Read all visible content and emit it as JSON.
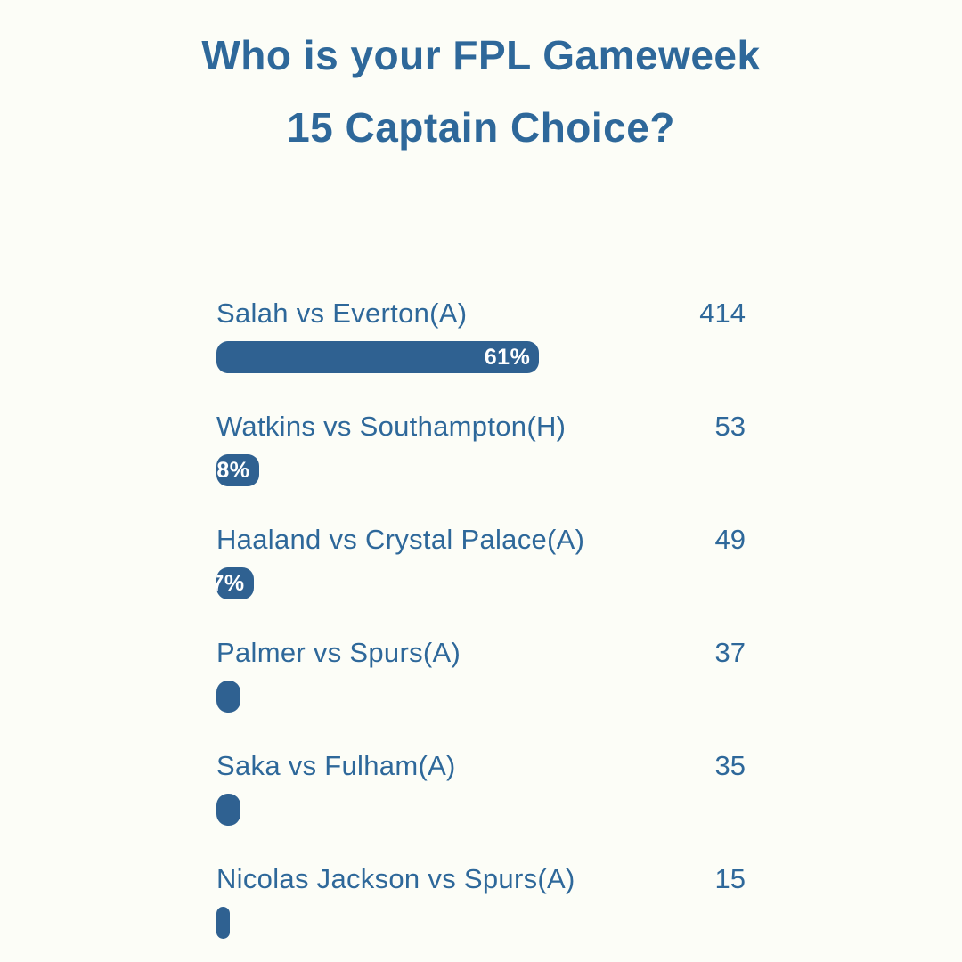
{
  "title": {
    "line1": "Who is your FPL Gameweek",
    "line2": "15 Captain Choice?"
  },
  "chart_data": {
    "type": "bar",
    "title": "Who is your FPL Gameweek 15 Captain Choice?",
    "orientation": "horizontal",
    "value_label": "votes",
    "options": [
      {
        "label": "Salah vs Everton(A)",
        "votes": "414",
        "percent": 61,
        "percent_label": "61%"
      },
      {
        "label": "Watkins vs Southampton(H)",
        "votes": "53",
        "percent": 8,
        "percent_label": "8%"
      },
      {
        "label": "Haaland vs Crystal Palace(A)",
        "votes": "49",
        "percent": 7,
        "percent_label": "7%"
      },
      {
        "label": "Palmer vs Spurs(A)",
        "votes": "37",
        "percent": 4.6,
        "percent_label": ""
      },
      {
        "label": "Saka vs Fulham(A)",
        "votes": "35",
        "percent": 4.5,
        "percent_label": ""
      },
      {
        "label": "Nicolas Jackson vs Spurs(A)",
        "votes": "15",
        "percent": 2.5,
        "percent_label": ""
      }
    ],
    "colors": {
      "background": "#fcfdf7",
      "text": "#2e689a",
      "bar": "#2f6191",
      "bar_label": "#ffffff"
    },
    "xlim": [
      0,
      100
    ],
    "grid": false,
    "legend": false
  }
}
